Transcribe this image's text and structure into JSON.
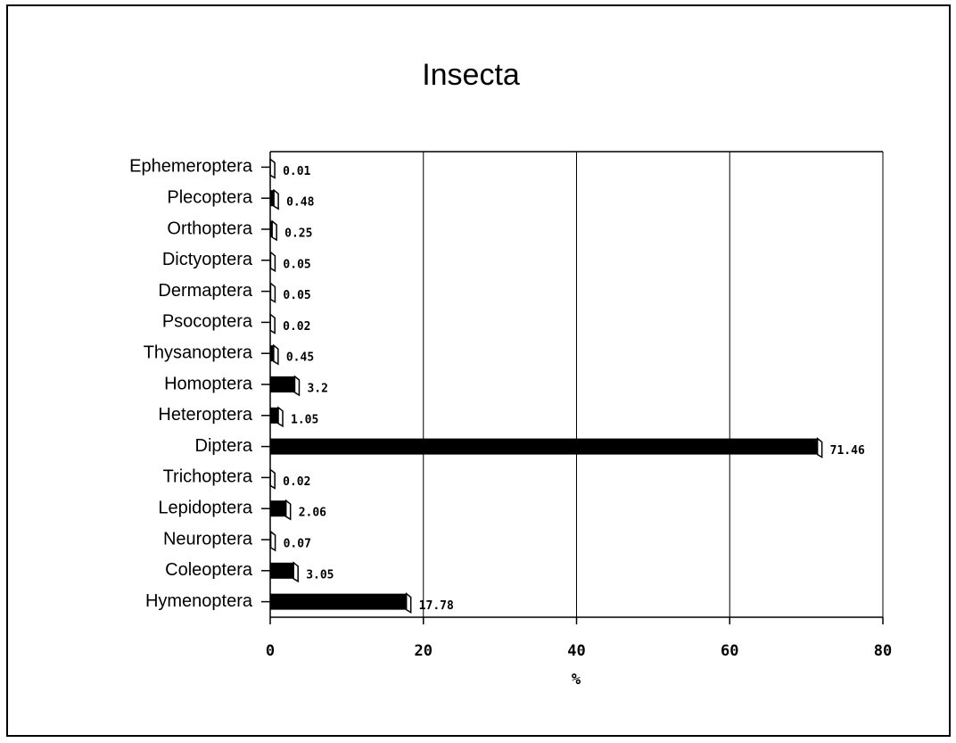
{
  "chart_data": {
    "type": "bar",
    "orientation": "horizontal",
    "title": "Insecta",
    "xlabel": "%",
    "categories": [
      "Ephemeroptera",
      "Plecoptera",
      "Orthoptera",
      "Dictyoptera",
      "Dermaptera",
      "Psocoptera",
      "Thysanoptera",
      "Homoptera",
      "Heteroptera",
      "Diptera",
      "Trichoptera",
      "Lepidoptera",
      "Neuroptera",
      "Coleoptera",
      "Hymenoptera"
    ],
    "values": [
      0.01,
      0.48,
      0.25,
      0.05,
      0.05,
      0.02,
      0.45,
      3.2,
      1.05,
      71.46,
      0.02,
      2.06,
      0.07,
      3.05,
      17.78
    ],
    "color": "#000000",
    "xlim": [
      0,
      80
    ],
    "xticks": [
      0,
      20,
      40,
      60,
      80
    ],
    "grid": true
  }
}
